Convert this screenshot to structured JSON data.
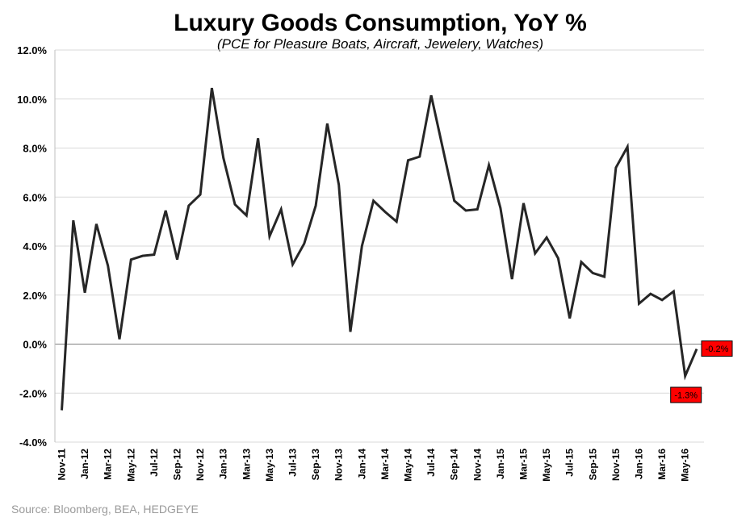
{
  "chart_data": {
    "type": "line",
    "title": "Luxury Goods Consumption, YoY %",
    "subtitle": "(PCE for Pleasure Boats, Aircraft, Jewelery, Watches)",
    "xlabel": "",
    "ylabel": "",
    "ylim": [
      -4.0,
      12.0
    ],
    "y_ticks": [
      "12.0%",
      "10.0%",
      "8.0%",
      "6.0%",
      "4.0%",
      "2.0%",
      "0.0%",
      "-2.0%",
      "-4.0%"
    ],
    "x_tick_labels": [
      "Nov-11",
      "Jan-12",
      "Mar-12",
      "May-12",
      "Jul-12",
      "Sep-12",
      "Nov-12",
      "Jan-13",
      "Mar-13",
      "May-13",
      "Jul-13",
      "Sep-13",
      "Nov-13",
      "Jan-14",
      "Mar-14",
      "May-14",
      "Jul-14",
      "Sep-14",
      "Nov-14",
      "Jan-15",
      "Mar-15",
      "May-15",
      "Jul-15",
      "Sep-15",
      "Nov-15",
      "Jan-16",
      "Mar-16",
      "May-16"
    ],
    "grid": true,
    "series": [
      {
        "color": "#262626",
        "x": [
          "Nov-11",
          "Dec-11",
          "Jan-12",
          "Feb-12",
          "Mar-12",
          "Apr-12",
          "May-12",
          "Jun-12",
          "Jul-12",
          "Aug-12",
          "Sep-12",
          "Oct-12",
          "Nov-12",
          "Dec-12",
          "Jan-13",
          "Feb-13",
          "Mar-13",
          "Apr-13",
          "May-13",
          "Jun-13",
          "Jul-13",
          "Aug-13",
          "Sep-13",
          "Oct-13",
          "Nov-13",
          "Dec-13",
          "Jan-14",
          "Feb-14",
          "Mar-14",
          "Apr-14",
          "May-14",
          "Jun-14",
          "Jul-14",
          "Aug-14",
          "Sep-14",
          "Oct-14",
          "Nov-14",
          "Dec-14",
          "Jan-15",
          "Feb-15",
          "Mar-15",
          "Apr-15",
          "May-15",
          "Jun-15",
          "Jul-15",
          "Aug-15",
          "Sep-15",
          "Oct-15",
          "Nov-15",
          "Dec-15",
          "Jan-16",
          "Feb-16",
          "Mar-16",
          "Apr-16",
          "May-16",
          "Jun-16"
        ],
        "values": [
          -2.7,
          5.05,
          2.1,
          4.9,
          3.2,
          0.2,
          3.45,
          3.6,
          3.65,
          5.45,
          3.45,
          5.65,
          6.1,
          10.45,
          7.6,
          5.7,
          5.25,
          8.4,
          4.4,
          5.5,
          3.25,
          4.1,
          5.65,
          9.0,
          6.5,
          0.5,
          4.0,
          5.85,
          5.4,
          5.0,
          7.5,
          7.65,
          10.15,
          8.0,
          5.85,
          5.45,
          5.5,
          7.3,
          5.55,
          2.65,
          5.75,
          3.7,
          4.35,
          3.5,
          1.05,
          3.35,
          2.9,
          2.75,
          7.2,
          8.05,
          1.65,
          2.05,
          1.8,
          2.15,
          -1.3,
          -0.2
        ]
      }
    ],
    "data_labels": [
      {
        "text": "-1.3%",
        "value": -1.3
      },
      {
        "text": "-0.2%",
        "value": -0.2
      }
    ],
    "source": "Source: Bloomberg, BEA, HEDGEYE"
  }
}
